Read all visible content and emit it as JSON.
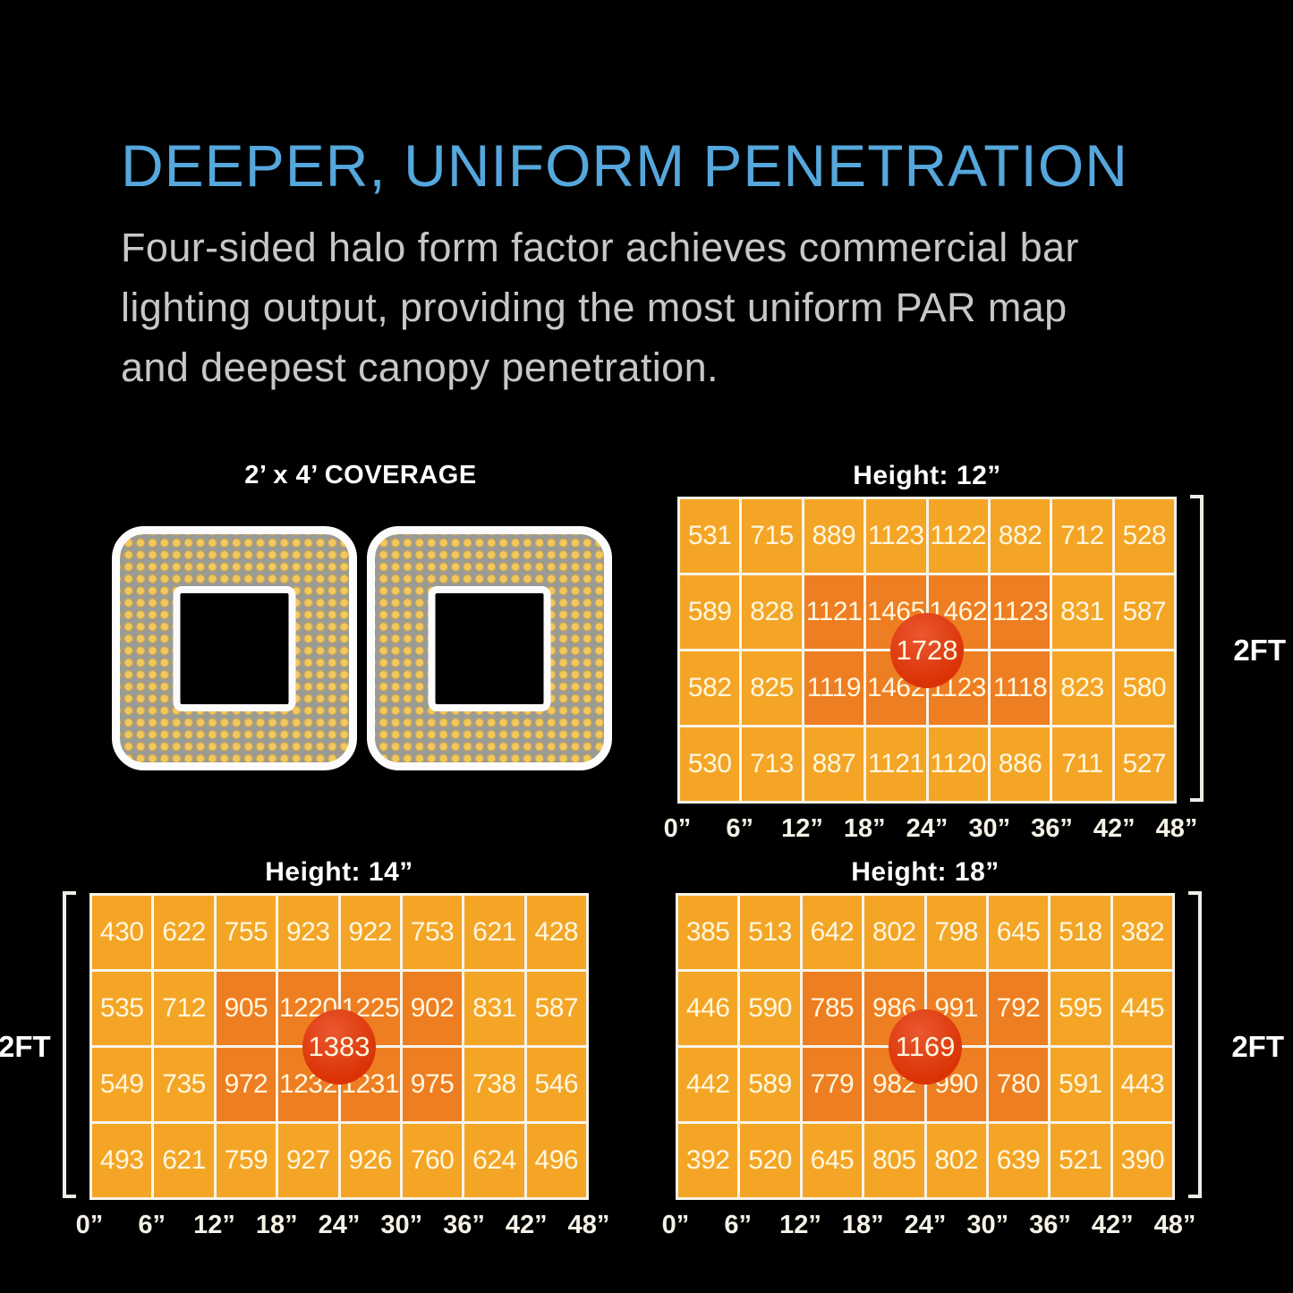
{
  "header": {
    "title": "DEEPER, UNIFORM PENETRATION",
    "body_lines": [
      "Four-sided halo form factor achieves commercial bar",
      "lighting output, providing the most uniform PAR map",
      "and deepest canopy penetration."
    ]
  },
  "coverage": {
    "label": "2’ x 4’ COVERAGE",
    "panel_count": 2
  },
  "colors": {
    "accent_blue": "#55A7DC",
    "body_gray": "#C7C7C7",
    "cell_gold": "#F4A526",
    "cell_hot_orange": "#EE7E22",
    "center_red": "#DB3306",
    "grid_line": "#F8F4EA",
    "cell_text": "#FFF7DE",
    "panel_gray": "#9B9B96",
    "led_gold": "#F2C95F"
  },
  "chart_data": [
    {
      "type": "heatmap",
      "title": "Height: 12”",
      "rows": 4,
      "cols": 8,
      "x_ticks": [
        "0”",
        "6”",
        "12”",
        "18”",
        "24”",
        "30”",
        "36”",
        "42”",
        "48”"
      ],
      "x_range_inches": [
        0,
        48
      ],
      "values": [
        [
          531,
          715,
          889,
          1123,
          1122,
          882,
          712,
          528
        ],
        [
          589,
          828,
          1121,
          1465,
          1462,
          1123,
          831,
          587
        ],
        [
          582,
          825,
          1119,
          1462,
          1123,
          1118,
          823,
          580
        ],
        [
          530,
          713,
          887,
          1121,
          1120,
          886,
          711,
          527
        ]
      ],
      "center_value": 1728,
      "hot_rows": [
        1,
        2
      ],
      "hot_cols": [
        2,
        3,
        4,
        5
      ],
      "side_label": "2FT",
      "side_label_position": "right"
    },
    {
      "type": "heatmap",
      "title": "Height: 14”",
      "rows": 4,
      "cols": 8,
      "x_ticks": [
        "0”",
        "6”",
        "12”",
        "18”",
        "24”",
        "30”",
        "36”",
        "42”",
        "48”"
      ],
      "x_range_inches": [
        0,
        48
      ],
      "values": [
        [
          430,
          622,
          755,
          923,
          922,
          753,
          621,
          428
        ],
        [
          535,
          712,
          905,
          1220,
          1225,
          902,
          831,
          587
        ],
        [
          549,
          735,
          972,
          1232,
          1231,
          975,
          738,
          546
        ],
        [
          493,
          621,
          759,
          927,
          926,
          760,
          624,
          496
        ]
      ],
      "center_value": 1383,
      "hot_rows": [
        1,
        2
      ],
      "hot_cols": [
        2,
        3,
        4,
        5
      ],
      "side_label": "2FT",
      "side_label_position": "left"
    },
    {
      "type": "heatmap",
      "title": "Height: 18”",
      "rows": 4,
      "cols": 8,
      "x_ticks": [
        "0”",
        "6”",
        "12”",
        "18”",
        "24”",
        "30”",
        "36”",
        "42”",
        "48”"
      ],
      "x_range_inches": [
        0,
        48
      ],
      "values": [
        [
          385,
          513,
          642,
          802,
          798,
          645,
          518,
          382
        ],
        [
          446,
          590,
          785,
          986,
          991,
          792,
          595,
          445
        ],
        [
          442,
          589,
          779,
          982,
          990,
          780,
          591,
          443
        ],
        [
          392,
          520,
          645,
          805,
          802,
          639,
          521,
          390
        ]
      ],
      "center_value": 1169,
      "hot_rows": [
        1,
        2
      ],
      "hot_cols": [
        2,
        3,
        4,
        5
      ],
      "side_label": "2FT",
      "side_label_position": "right"
    }
  ]
}
